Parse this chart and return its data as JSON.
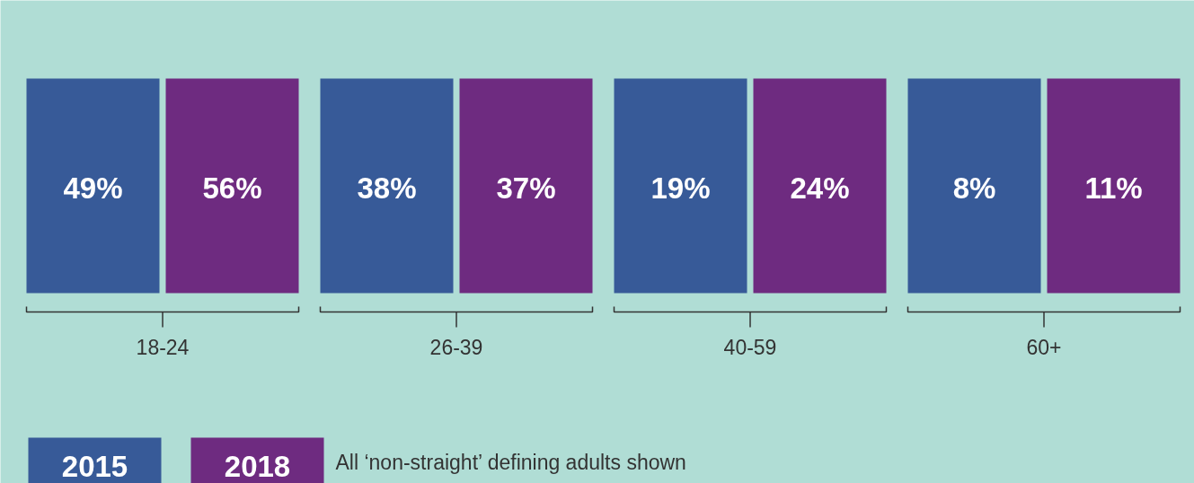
{
  "chart_data": {
    "type": "other",
    "categories": [
      "18-24",
      "26-39",
      "40-59",
      "60+"
    ],
    "series": [
      {
        "name": "2015",
        "color": "#375a98",
        "values": [
          49,
          38,
          19,
          8
        ],
        "value_labels": [
          "49%",
          "38%",
          "19%",
          "8%"
        ]
      },
      {
        "name": "2018",
        "color": "#6e2b80",
        "values": [
          56,
          37,
          24,
          11
        ],
        "value_labels": [
          "56%",
          "37%",
          "24%",
          "11%"
        ]
      }
    ],
    "data_labels": true,
    "legend": "bottom left",
    "annotations": [
      "All ‘non-straight’ defining adults shown"
    ]
  }
}
